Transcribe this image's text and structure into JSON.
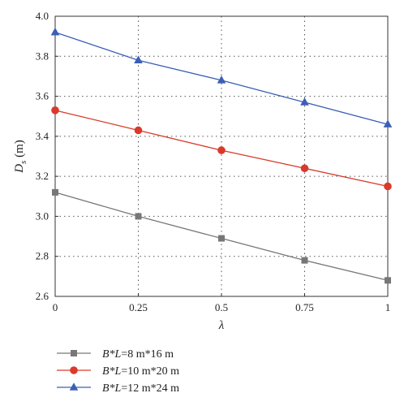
{
  "chart_data": {
    "type": "line",
    "x": [
      0,
      0.25,
      0.5,
      0.75,
      1
    ],
    "xticks": [
      "0",
      "0.25",
      "0.5",
      "0.75",
      "1"
    ],
    "yticks": [
      "2.6",
      "2.8",
      "3.0",
      "3.2",
      "3.4",
      "3.6",
      "3.8",
      "4.0"
    ],
    "xlim": [
      0,
      1
    ],
    "ylim": [
      2.6,
      4.0
    ],
    "xlabel": "λ",
    "ylabel": {
      "main": "D",
      "sub": "s",
      "unit": " (m)"
    },
    "grid": true,
    "legend_position": "bottom",
    "series": [
      {
        "name": "B*L=8 m*16 m",
        "legend": {
          "italic": "B*L",
          "rest": "=8 m*16 m"
        },
        "marker": "square",
        "color": "#777777",
        "values": [
          3.12,
          3.0,
          2.89,
          2.78,
          2.68
        ]
      },
      {
        "name": "B*L=10 m*20 m",
        "legend": {
          "italic": "B*L",
          "rest": "=10 m*20 m"
        },
        "marker": "circle",
        "color": "#d93a2b",
        "values": [
          3.53,
          3.43,
          3.33,
          3.24,
          3.15
        ]
      },
      {
        "name": "B*L=12 m*24 m",
        "legend": {
          "italic": "B*L",
          "rest": "=12 m*24 m"
        },
        "marker": "triangle",
        "color": "#3a5fb5",
        "values": [
          3.92,
          3.78,
          3.68,
          3.57,
          3.46
        ]
      }
    ]
  }
}
